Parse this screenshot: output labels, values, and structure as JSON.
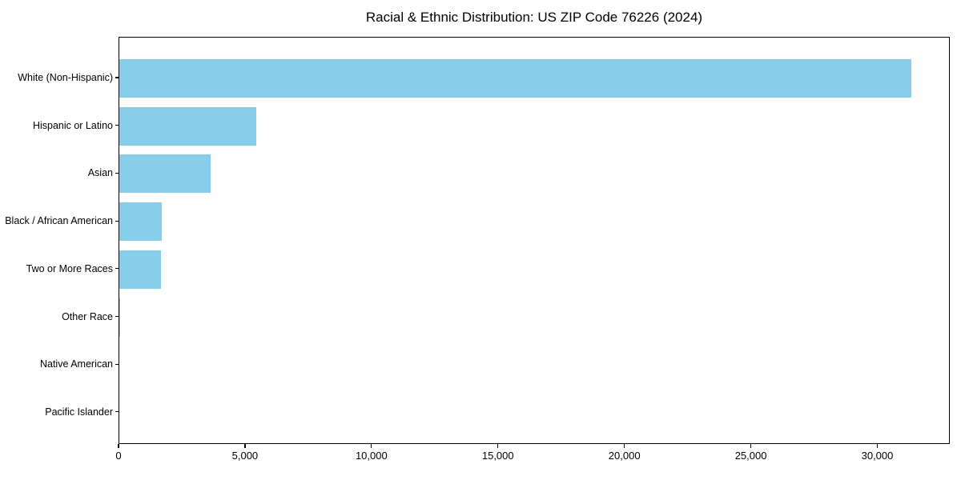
{
  "title": "Racial & Ethnic Distribution: US ZIP Code 76226 (2024)",
  "chart_data": {
    "type": "bar",
    "orientation": "horizontal",
    "title": "Racial & Ethnic Distribution: US ZIP Code 76226 (2024)",
    "xlabel": "",
    "ylabel": "",
    "categories": [
      "White (Non-Hispanic)",
      "Hispanic or Latino",
      "Asian",
      "Black / African American",
      "Two or More Races",
      "Other Race",
      "Native American",
      "Pacific Islander"
    ],
    "values": [
      31300,
      5400,
      3600,
      1670,
      1640,
      40,
      0,
      0
    ],
    "xlim": [
      0,
      32865
    ],
    "x_ticks": [
      0,
      5000,
      10000,
      15000,
      20000,
      25000,
      30000
    ],
    "x_tick_labels": [
      "0",
      "5,000",
      "10,000",
      "15,000",
      "20,000",
      "25,000",
      "30,000"
    ],
    "bar_color": "#87CEEB",
    "frame_color": "#000000",
    "grid": false,
    "legend": "none"
  }
}
